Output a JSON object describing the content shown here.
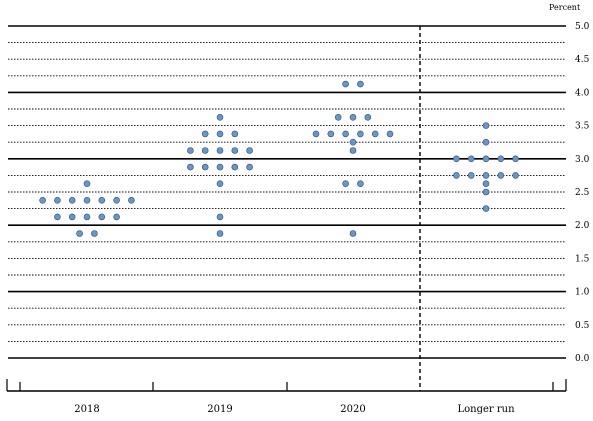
{
  "chart_data": {
    "type": "scatter",
    "title": "",
    "xlabel": "",
    "ylabel": "",
    "unit_label": "Percent",
    "ylim": [
      0,
      5
    ],
    "y_ticks": [
      "0.0",
      "0.5",
      "1.0",
      "1.5",
      "2.0",
      "2.5",
      "3.0",
      "3.5",
      "4.0",
      "4.5",
      "5.0"
    ],
    "categories": [
      "2018",
      "2019",
      "2020",
      "Longer run"
    ],
    "dot_color": "#6b96c4",
    "dot_edge_color": "#2f4f72",
    "gridlines": "major at whole numbers (solid), minor every 0.25 (dotted)",
    "separator": "dashed vertical line before Longer run",
    "points": [
      {
        "category": "2018",
        "values": [
          2.625,
          2.375,
          2.375,
          2.375,
          2.375,
          2.375,
          2.375,
          2.375,
          2.125,
          2.125,
          2.125,
          2.125,
          2.125,
          1.875,
          1.875
        ]
      },
      {
        "category": "2019",
        "values": [
          3.625,
          3.375,
          3.375,
          3.375,
          3.125,
          3.125,
          3.125,
          3.125,
          3.125,
          2.875,
          2.875,
          2.875,
          2.875,
          2.875,
          2.625,
          2.125,
          1.875
        ]
      },
      {
        "category": "2020",
        "values": [
          4.125,
          4.125,
          3.625,
          3.625,
          3.625,
          3.375,
          3.375,
          3.375,
          3.375,
          3.375,
          3.375,
          3.25,
          3.125,
          2.625,
          2.625,
          1.875
        ]
      },
      {
        "category": "Longer run",
        "values": [
          3.5,
          3.25,
          3.0,
          3.0,
          3.0,
          3.0,
          3.0,
          2.75,
          2.75,
          2.75,
          2.75,
          2.75,
          2.625,
          2.5,
          2.25
        ]
      }
    ]
  }
}
